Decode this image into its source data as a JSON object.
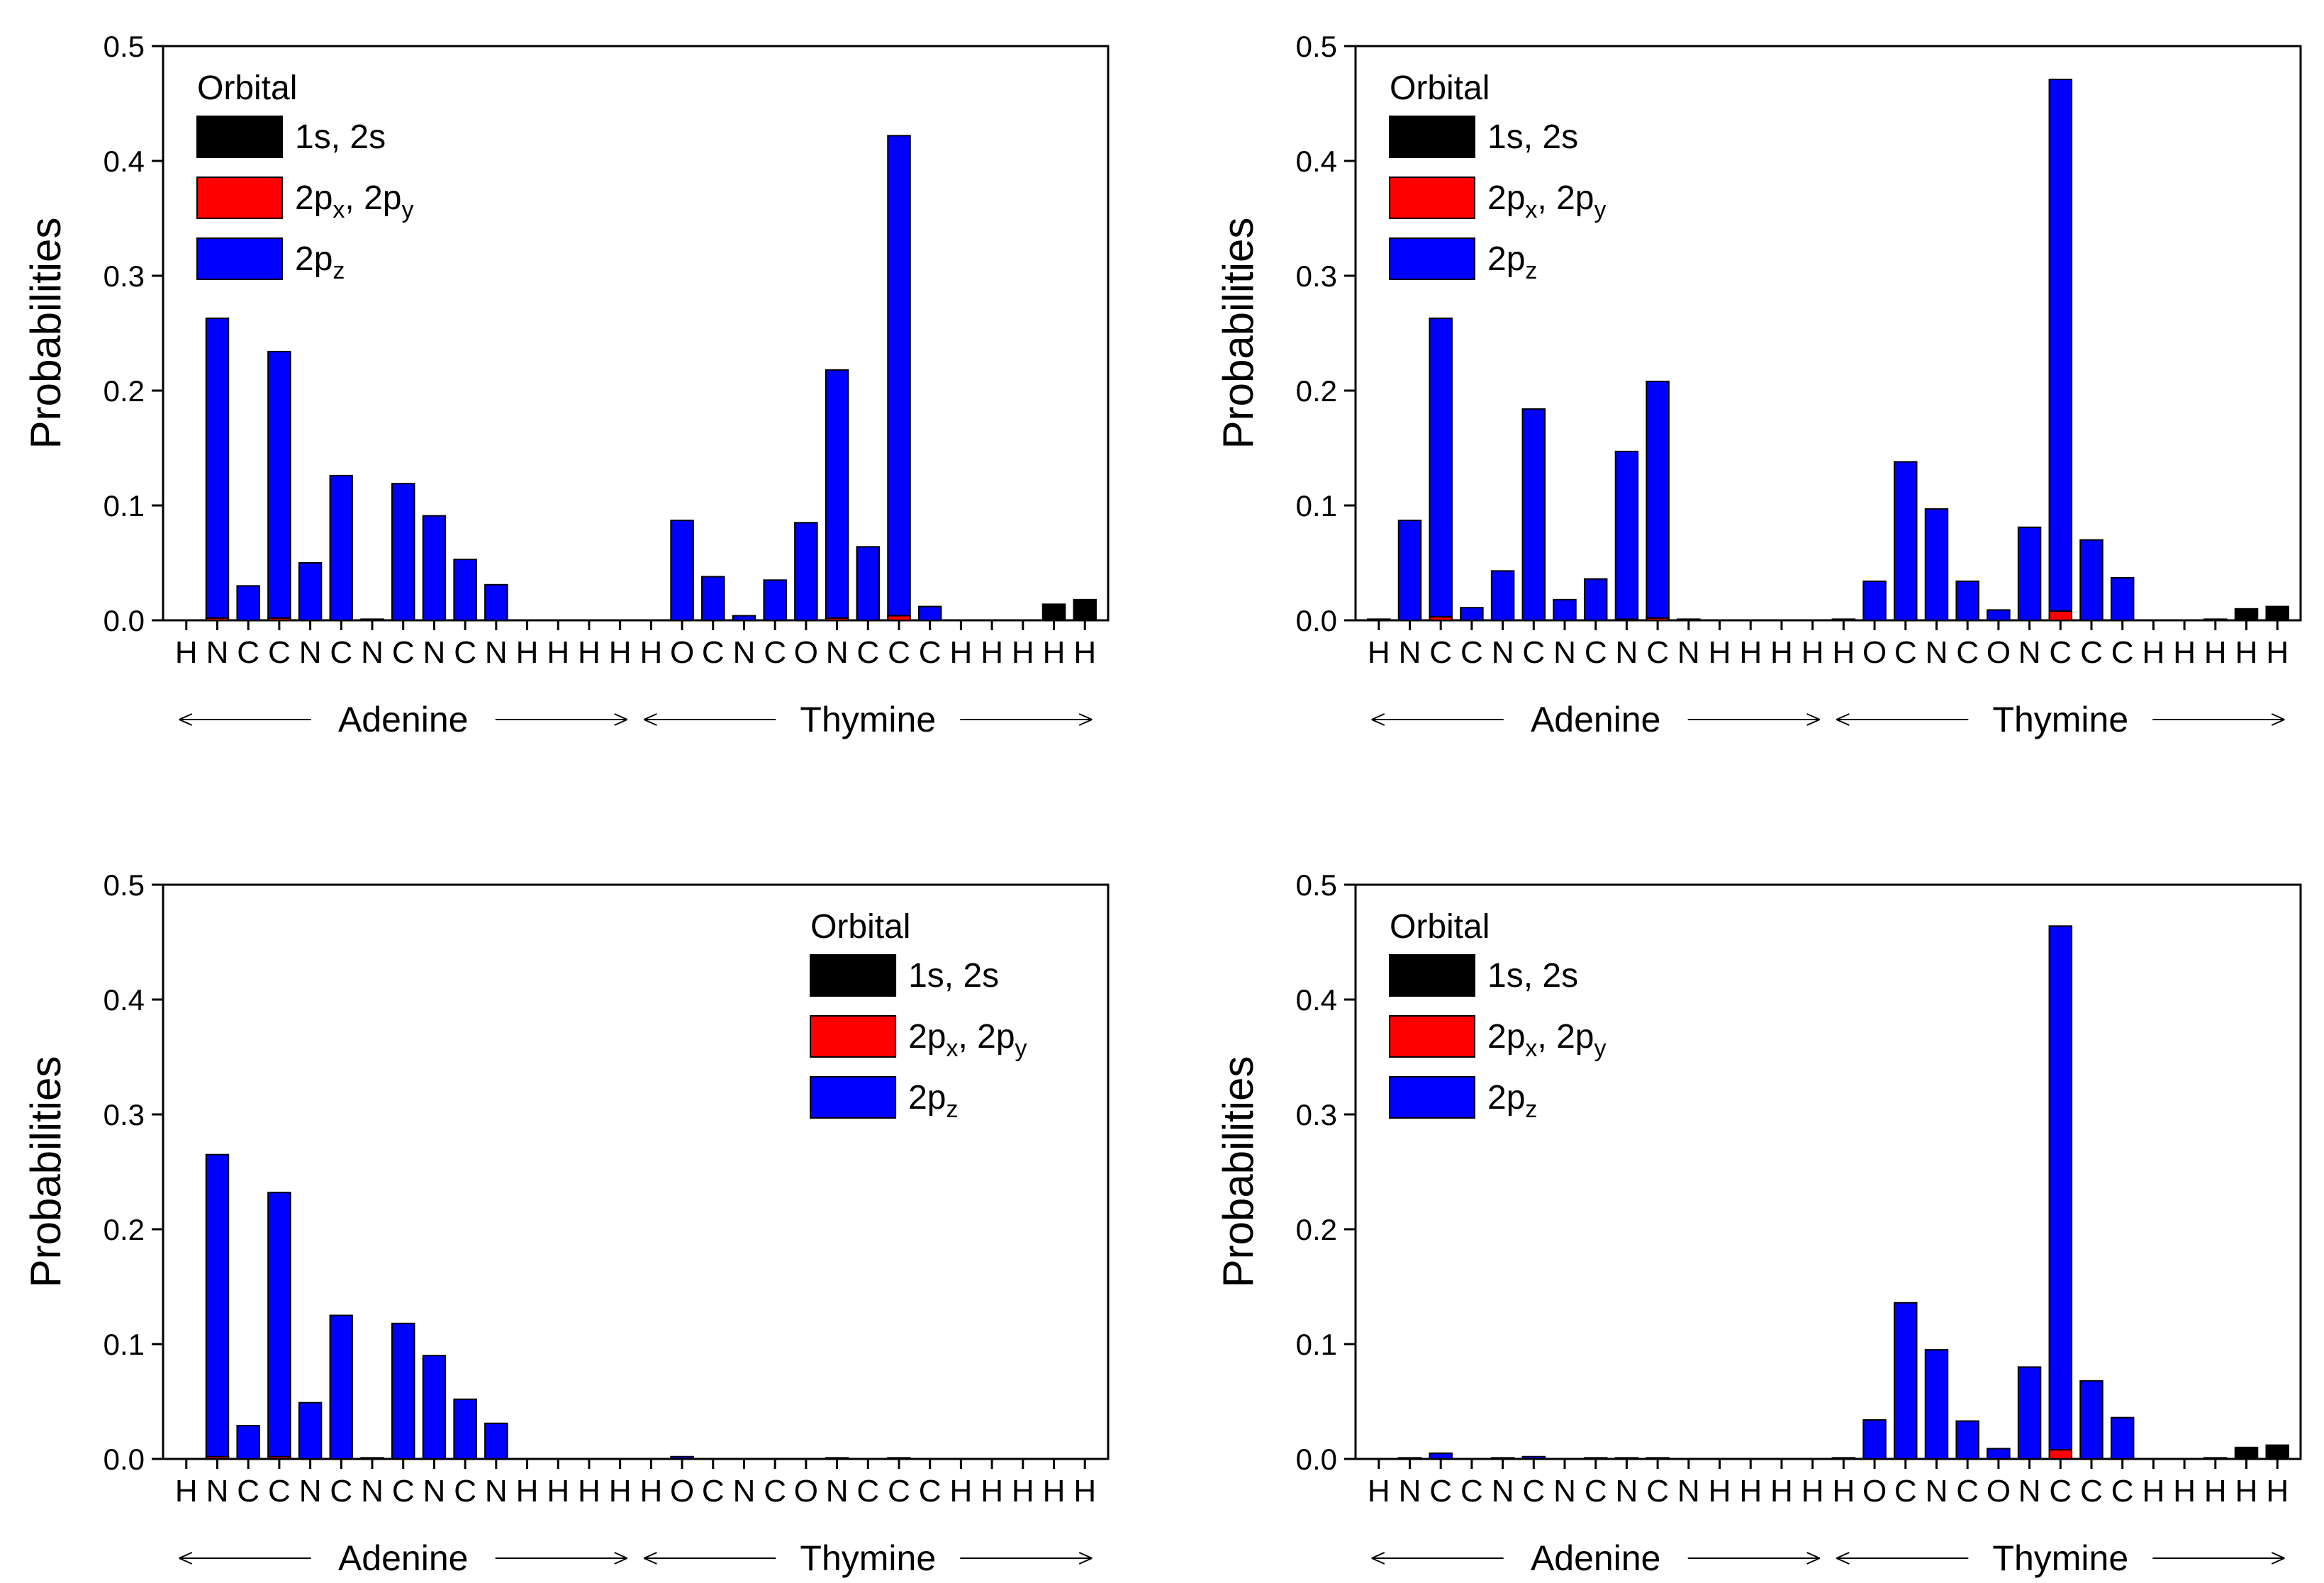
{
  "chart_data": [
    {
      "type": "bar",
      "stacked": true,
      "ylabel": "Probabilities",
      "ylim": [
        0,
        0.5
      ],
      "yticks": [
        "0.0",
        "0.1",
        "0.2",
        "0.3",
        "0.4",
        "0.5"
      ],
      "categories": [
        "H",
        "N",
        "C",
        "C",
        "N",
        "C",
        "N",
        "C",
        "N",
        "C",
        "N",
        "H",
        "H",
        "H",
        "H",
        "H",
        "O",
        "C",
        "N",
        "C",
        "O",
        "N",
        "C",
        "C",
        "C",
        "H",
        "H",
        "H",
        "H",
        "H"
      ],
      "groups": [
        {
          "label": "Adenine",
          "span": [
            0,
            14
          ]
        },
        {
          "label": "Thymine",
          "span": [
            15,
            29
          ]
        }
      ],
      "legend": {
        "title": "Orbital",
        "position": "top-left",
        "entries": [
          {
            "main": "1s, 2s",
            "color": "#000000"
          },
          {
            "main": "2p",
            "sub1": "x",
            "mid": ", 2p",
            "sub2": "y",
            "color": "#ff0000"
          },
          {
            "main": "2p",
            "sub1": "z",
            "color": "#0000ff"
          }
        ]
      },
      "series": [
        {
          "name": "1s, 2s",
          "color": "#000000",
          "values": [
            0,
            0,
            0,
            0,
            0,
            0,
            0,
            0,
            0,
            0,
            0,
            0,
            0,
            0,
            0,
            0,
            0,
            0,
            0,
            0,
            0,
            0,
            0,
            0,
            0,
            0,
            0,
            0,
            0.014,
            0.018
          ]
        },
        {
          "name": "2px, 2py",
          "color": "#ff0000",
          "values": [
            0,
            0.002,
            0,
            0.002,
            0,
            0,
            0,
            0,
            0,
            0,
            0,
            0,
            0,
            0,
            0,
            0,
            0,
            0,
            0,
            0,
            0,
            0.002,
            0,
            0.004,
            0,
            0,
            0,
            0,
            0,
            0
          ]
        },
        {
          "name": "2pz",
          "color": "#0000ff",
          "values": [
            0,
            0.261,
            0.03,
            0.232,
            0.05,
            0.126,
            0.001,
            0.119,
            0.091,
            0.053,
            0.031,
            0,
            0,
            0,
            0,
            0,
            0.087,
            0.038,
            0.004,
            0.035,
            0.085,
            0.216,
            0.064,
            0.418,
            0.012,
            0,
            0,
            0,
            0,
            0
          ]
        }
      ]
    },
    {
      "type": "bar",
      "stacked": true,
      "ylabel": "Probabilities",
      "ylim": [
        0,
        0.5
      ],
      "yticks": [
        "0.0",
        "0.1",
        "0.2",
        "0.3",
        "0.4",
        "0.5"
      ],
      "categories": [
        "H",
        "N",
        "C",
        "C",
        "N",
        "C",
        "N",
        "C",
        "N",
        "C",
        "N",
        "H",
        "H",
        "H",
        "H",
        "H",
        "O",
        "C",
        "N",
        "C",
        "O",
        "N",
        "C",
        "C",
        "C",
        "H",
        "H",
        "H",
        "H",
        "H"
      ],
      "groups": [
        {
          "label": "Adenine",
          "span": [
            0,
            14
          ]
        },
        {
          "label": "Thymine",
          "span": [
            15,
            29
          ]
        }
      ],
      "legend": {
        "title": "Orbital",
        "position": "top-left",
        "entries": [
          {
            "main": "1s, 2s",
            "color": "#000000"
          },
          {
            "main": "2p",
            "sub1": "x",
            "mid": ", 2p",
            "sub2": "y",
            "color": "#ff0000"
          },
          {
            "main": "2p",
            "sub1": "z",
            "color": "#0000ff"
          }
        ]
      },
      "series": [
        {
          "name": "1s, 2s",
          "color": "#000000",
          "values": [
            0,
            0,
            0,
            0,
            0,
            0,
            0,
            0,
            0,
            0,
            0,
            0,
            0,
            0,
            0,
            0,
            0,
            0,
            0,
            0,
            0,
            0,
            0,
            0,
            0,
            0,
            0,
            0,
            0.01,
            0.012
          ]
        },
        {
          "name": "2px, 2py",
          "color": "#ff0000",
          "values": [
            0,
            0,
            0.003,
            0,
            0,
            0,
            0,
            0,
            0.001,
            0.002,
            0,
            0,
            0,
            0,
            0,
            0,
            0,
            0,
            0,
            0,
            0,
            0,
            0.008,
            0,
            0,
            0,
            0,
            0,
            0,
            0
          ]
        },
        {
          "name": "2pz",
          "color": "#0000ff",
          "values": [
            0.001,
            0.087,
            0.26,
            0.011,
            0.043,
            0.184,
            0.018,
            0.036,
            0.146,
            0.206,
            0.001,
            0,
            0,
            0,
            0,
            0.001,
            0.034,
            0.138,
            0.097,
            0.034,
            0.009,
            0.081,
            0.463,
            0.07,
            0.037,
            0,
            0,
            0.001,
            0,
            0
          ]
        }
      ]
    },
    {
      "type": "bar",
      "stacked": true,
      "ylabel": "Probabilities",
      "ylim": [
        0,
        0.5
      ],
      "yticks": [
        "0.0",
        "0.1",
        "0.2",
        "0.3",
        "0.4",
        "0.5"
      ],
      "categories": [
        "H",
        "N",
        "C",
        "C",
        "N",
        "C",
        "N",
        "C",
        "N",
        "C",
        "N",
        "H",
        "H",
        "H",
        "H",
        "H",
        "O",
        "C",
        "N",
        "C",
        "O",
        "N",
        "C",
        "C",
        "C",
        "H",
        "H",
        "H",
        "H",
        "H"
      ],
      "groups": [
        {
          "label": "Adenine",
          "span": [
            0,
            14
          ]
        },
        {
          "label": "Thymine",
          "span": [
            15,
            29
          ]
        }
      ],
      "legend": {
        "title": "Orbital",
        "position": "top-right",
        "entries": [
          {
            "main": "1s, 2s",
            "color": "#000000"
          },
          {
            "main": "2p",
            "sub1": "x",
            "mid": ", 2p",
            "sub2": "y",
            "color": "#ff0000"
          },
          {
            "main": "2p",
            "sub1": "z",
            "color": "#0000ff"
          }
        ]
      },
      "series": [
        {
          "name": "1s, 2s",
          "color": "#000000",
          "values": [
            0,
            0,
            0,
            0,
            0,
            0,
            0,
            0,
            0,
            0,
            0,
            0,
            0,
            0,
            0,
            0,
            0,
            0,
            0,
            0,
            0,
            0,
            0,
            0,
            0,
            0,
            0,
            0,
            0,
            0
          ]
        },
        {
          "name": "2px, 2py",
          "color": "#ff0000",
          "values": [
            0,
            0.002,
            0,
            0.002,
            0,
            0,
            0,
            0,
            0,
            0,
            0,
            0,
            0,
            0,
            0,
            0,
            0,
            0,
            0,
            0,
            0,
            0,
            0,
            0,
            0,
            0,
            0,
            0,
            0,
            0
          ]
        },
        {
          "name": "2pz",
          "color": "#0000ff",
          "values": [
            0,
            0.263,
            0.029,
            0.23,
            0.049,
            0.125,
            0.001,
            0.118,
            0.09,
            0.052,
            0.031,
            0,
            0,
            0,
            0,
            0,
            0.002,
            0,
            0,
            0,
            0,
            0.001,
            0,
            0.001,
            0,
            0,
            0,
            0,
            0,
            0
          ]
        }
      ]
    },
    {
      "type": "bar",
      "stacked": true,
      "ylabel": "Probabilities",
      "ylim": [
        0,
        0.5
      ],
      "yticks": [
        "0.0",
        "0.1",
        "0.2",
        "0.3",
        "0.4",
        "0.5"
      ],
      "categories": [
        "H",
        "N",
        "C",
        "C",
        "N",
        "C",
        "N",
        "C",
        "N",
        "C",
        "N",
        "H",
        "H",
        "H",
        "H",
        "H",
        "O",
        "C",
        "N",
        "C",
        "O",
        "N",
        "C",
        "C",
        "C",
        "H",
        "H",
        "H",
        "H",
        "H"
      ],
      "groups": [
        {
          "label": "Adenine",
          "span": [
            0,
            14
          ]
        },
        {
          "label": "Thymine",
          "span": [
            15,
            29
          ]
        }
      ],
      "legend": {
        "title": "Orbital",
        "position": "top-left",
        "entries": [
          {
            "main": "1s, 2s",
            "color": "#000000"
          },
          {
            "main": "2p",
            "sub1": "x",
            "mid": ", 2p",
            "sub2": "y",
            "color": "#ff0000"
          },
          {
            "main": "2p",
            "sub1": "z",
            "color": "#0000ff"
          }
        ]
      },
      "series": [
        {
          "name": "1s, 2s",
          "color": "#000000",
          "values": [
            0,
            0,
            0,
            0,
            0,
            0,
            0,
            0,
            0,
            0,
            0,
            0,
            0,
            0,
            0,
            0,
            0,
            0,
            0,
            0,
            0,
            0,
            0,
            0,
            0,
            0,
            0,
            0,
            0.01,
            0.012
          ]
        },
        {
          "name": "2px, 2py",
          "color": "#ff0000",
          "values": [
            0,
            0,
            0,
            0,
            0,
            0,
            0,
            0,
            0,
            0,
            0,
            0,
            0,
            0,
            0,
            0,
            0,
            0,
            0,
            0,
            0,
            0,
            0.008,
            0,
            0,
            0,
            0,
            0,
            0,
            0
          ]
        },
        {
          "name": "2pz",
          "color": "#0000ff",
          "values": [
            0,
            0.001,
            0.005,
            0,
            0.001,
            0.002,
            0,
            0.001,
            0.001,
            0.001,
            0,
            0,
            0,
            0,
            0,
            0.001,
            0.034,
            0.136,
            0.095,
            0.033,
            0.009,
            0.08,
            0.456,
            0.068,
            0.036,
            0,
            0,
            0.001,
            0,
            0
          ]
        }
      ]
    }
  ]
}
